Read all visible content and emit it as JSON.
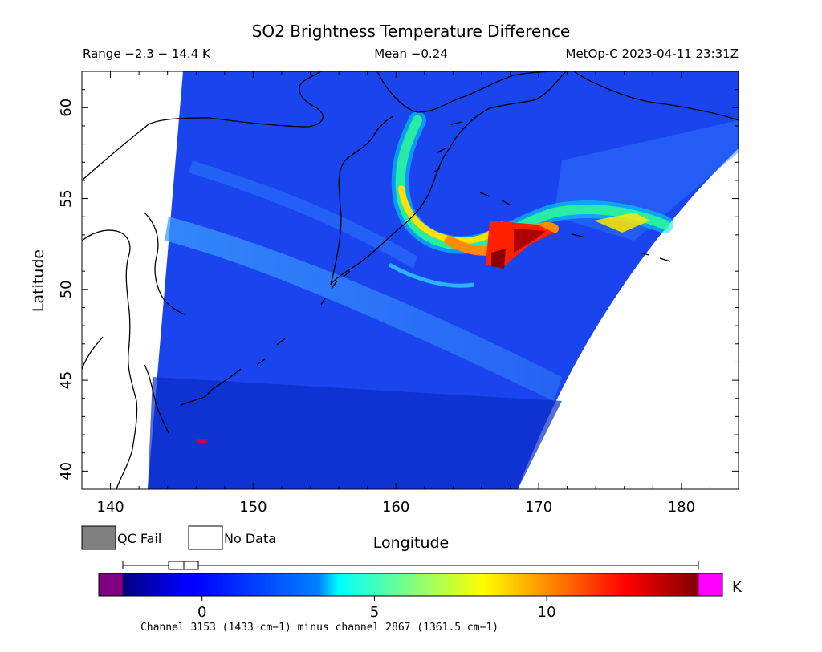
{
  "header": {
    "title": "SO2 Brightness Temperature Difference",
    "range_text": "Range −2.3 − 14.4 K",
    "mean_text": "Mean −0.24",
    "satellite_time": "MetOp-C 2023-04-11 23:31Z"
  },
  "map": {
    "x_axis_label": "Longitude",
    "y_axis_label": "Latitude",
    "x_range": [
      138,
      184
    ],
    "y_range": [
      39,
      62
    ],
    "x_ticks": [
      "140",
      "150",
      "160",
      "170",
      "180"
    ],
    "x_tick_values": [
      140,
      150,
      160,
      170,
      180
    ],
    "y_ticks": [
      "40",
      "45",
      "50",
      "55",
      "60"
    ],
    "y_tick_values": [
      40,
      45,
      50,
      55,
      60
    ],
    "background_color": "#1a45ee",
    "no_data_color": "#ffffff",
    "coastline_color": "#000000"
  },
  "legend": {
    "qc_fail_label": "QC Fail",
    "qc_fail_color": "#808080",
    "no_data_label": "No Data",
    "no_data_color": "#ffffff"
  },
  "colorbar": {
    "unit": "K",
    "range": [
      -2.3,
      14.4
    ],
    "tick_labels": [
      "0",
      "5",
      "10"
    ],
    "tick_values": [
      0,
      5,
      10
    ],
    "under_color": "#800080",
    "over_color": "#ff00ff",
    "caption": "Channel 3153 (1433 cm−1) minus channel 2867 (1361.5 cm−1)"
  }
}
